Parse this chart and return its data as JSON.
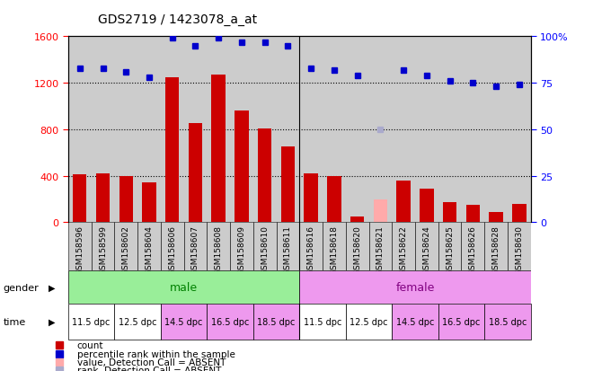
{
  "title": "GDS2719 / 1423078_a_at",
  "samples": [
    "GSM158596",
    "GSM158599",
    "GSM158602",
    "GSM158604",
    "GSM158606",
    "GSM158607",
    "GSM158608",
    "GSM158609",
    "GSM158610",
    "GSM158611",
    "GSM158616",
    "GSM158618",
    "GSM158620",
    "GSM158621",
    "GSM158622",
    "GSM158624",
    "GSM158625",
    "GSM158626",
    "GSM158628",
    "GSM158630"
  ],
  "bar_values": [
    410,
    420,
    400,
    340,
    1250,
    850,
    1270,
    960,
    810,
    650,
    420,
    400,
    50,
    200,
    360,
    290,
    170,
    150,
    90,
    160
  ],
  "bar_absent": [
    false,
    false,
    false,
    false,
    false,
    false,
    false,
    false,
    false,
    false,
    false,
    false,
    false,
    true,
    false,
    false,
    false,
    false,
    false,
    false
  ],
  "percentile_values": [
    83,
    83,
    81,
    78,
    99,
    95,
    99,
    97,
    97,
    95,
    83,
    82,
    79,
    50,
    82,
    79,
    76,
    75,
    73,
    74
  ],
  "percentile_absent": [
    false,
    false,
    false,
    false,
    false,
    false,
    false,
    false,
    false,
    false,
    false,
    false,
    false,
    true,
    false,
    false,
    false,
    false,
    false,
    false
  ],
  "bar_color": "#cc0000",
  "bar_absent_color": "#ffaaaa",
  "dot_color": "#0000cc",
  "dot_absent_color": "#aaaacc",
  "ylim_left": [
    0,
    1600
  ],
  "ylim_right": [
    0,
    100
  ],
  "yticks_left": [
    0,
    400,
    800,
    1200,
    1600
  ],
  "yticks_right": [
    0,
    25,
    50,
    75,
    100
  ],
  "gender_split": 10,
  "gender_labels": [
    "male",
    "female"
  ],
  "gender_colors": [
    "#99ee99",
    "#ee99ee"
  ],
  "time_labels": [
    "11.5 dpc",
    "12.5 dpc",
    "14.5 dpc",
    "16.5 dpc",
    "18.5 dpc"
  ],
  "time_colors": {
    "11.5 dpc": "#ffffff",
    "12.5 dpc": "#ffffff",
    "14.5 dpc": "#ee99ee",
    "16.5 dpc": "#ee99ee",
    "18.5 dpc": "#ee99ee"
  },
  "bg_color": "#cccccc",
  "legend_items": [
    {
      "label": "count",
      "color": "#cc0000"
    },
    {
      "label": "percentile rank within the sample",
      "color": "#0000cc"
    },
    {
      "label": "value, Detection Call = ABSENT",
      "color": "#ffaaaa"
    },
    {
      "label": "rank, Detection Call = ABSENT",
      "color": "#aaaacc"
    }
  ]
}
